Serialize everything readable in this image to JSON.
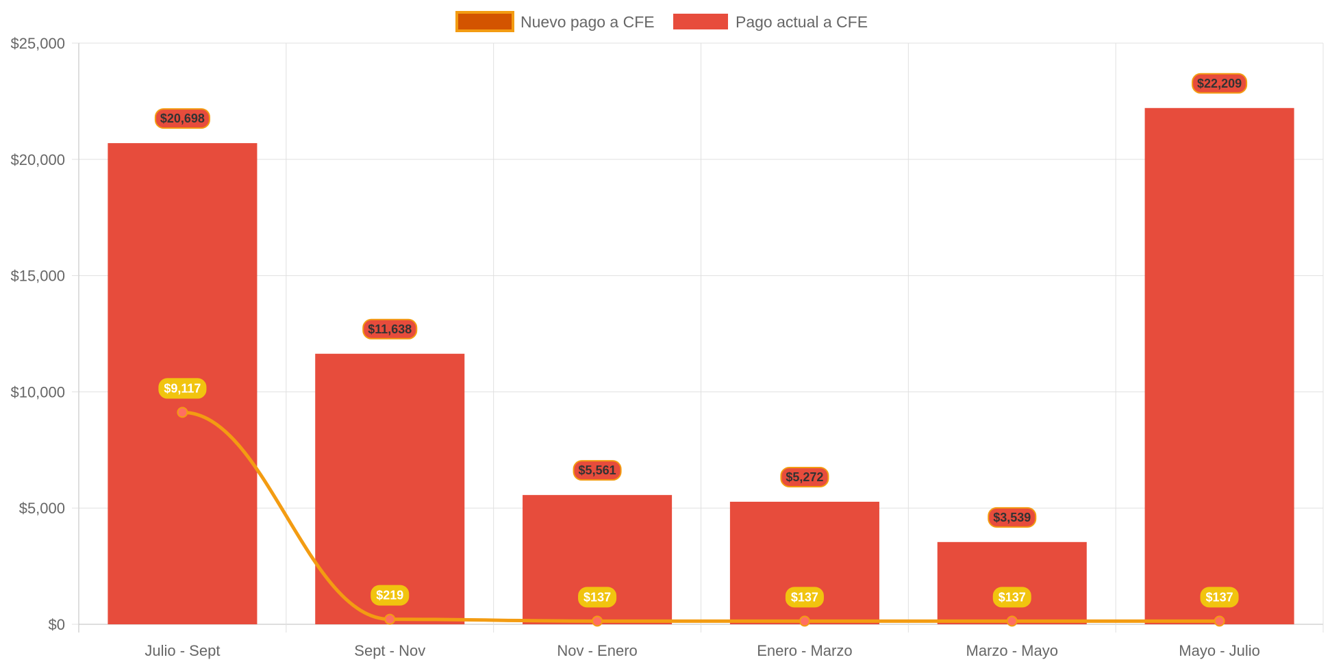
{
  "chart_data": {
    "type": "bar",
    "categories": [
      "Julio - Sept",
      "Sept - Nov",
      "Nov - Enero",
      "Enero - Marzo",
      "Marzo - Mayo",
      "Mayo - Julio"
    ],
    "series": [
      {
        "name": "Nuevo pago a CFE",
        "type": "line",
        "values": [
          9117,
          219,
          137,
          137,
          137,
          137
        ],
        "labels": [
          "$9,117",
          "$219",
          "$137",
          "$137",
          "$137",
          "$137"
        ],
        "color": "#f39c12",
        "legend_fill": "#d35400",
        "label_bg": "#f1c40f"
      },
      {
        "name": "Pago actual a CFE",
        "type": "bar",
        "values": [
          20698,
          11638,
          5561,
          5272,
          3539,
          22209
        ],
        "labels": [
          "$20,698",
          "$11,638",
          "$5,561",
          "$5,272",
          "$3,539",
          "$22,209"
        ],
        "color": "#e74c3c",
        "label_border": "#f39c12"
      }
    ],
    "ylim": [
      0,
      25000
    ],
    "yticks": [
      0,
      5000,
      10000,
      15000,
      20000,
      25000
    ],
    "ytick_labels": [
      "$0",
      "$5,000",
      "$10,000",
      "$15,000",
      "$20,000",
      "$25,000"
    ],
    "grid": true,
    "legend_position": "top-center"
  }
}
